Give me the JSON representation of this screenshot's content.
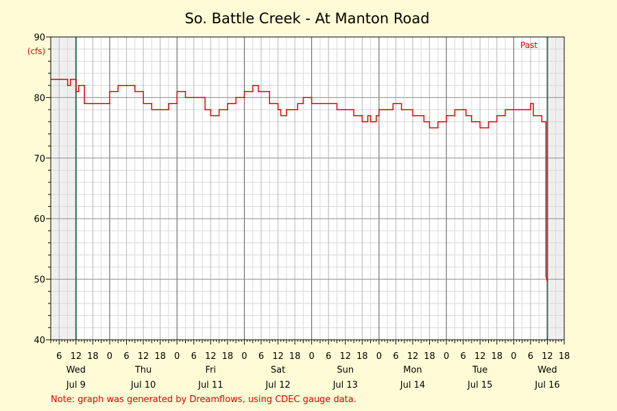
{
  "chart_data": {
    "type": "line",
    "title": "So. Battle Creek - At Manton Road",
    "ylabel": "(cfs)",
    "ylim": [
      40,
      90
    ],
    "yticks": [
      40,
      50,
      60,
      70,
      80,
      90
    ],
    "grid": true,
    "x_unit": "hours since Jul 9 00:00",
    "xlim": [
      3,
      186
    ],
    "hour_tick_labels": [
      "6",
      "12",
      "18",
      "0",
      "6",
      "12",
      "18",
      "0",
      "6",
      "12",
      "18",
      "0",
      "6",
      "12",
      "18",
      "0",
      "6",
      "12",
      "18",
      "0",
      "6",
      "12",
      "18",
      "0",
      "6",
      "12",
      "18",
      "0",
      "6",
      "12",
      "18"
    ],
    "day_labels": [
      {
        "day": "Wed",
        "date": "Jul 9"
      },
      {
        "day": "Thu",
        "date": "Jul 10"
      },
      {
        "day": "Fri",
        "date": "Jul 11"
      },
      {
        "day": "Sat",
        "date": "Jul 12"
      },
      {
        "day": "Sun",
        "date": "Jul 13"
      },
      {
        "day": "Mon",
        "date": "Jul 14"
      },
      {
        "day": "Tue",
        "date": "Jul 15"
      },
      {
        "day": "Wed",
        "date": "Jul 16"
      }
    ],
    "shaded_before": 12,
    "shaded_after": 180,
    "annotation": "Past",
    "line_color": "#e00000",
    "series": [
      {
        "x": [
          3,
          9,
          9,
          10,
          10,
          12,
          12,
          13,
          13,
          15,
          15,
          24,
          24,
          27,
          27,
          33,
          33,
          36,
          36,
          39,
          39,
          45,
          45,
          48,
          48,
          51,
          51,
          58,
          58,
          60,
          60,
          63,
          63,
          66,
          66,
          69,
          69,
          72,
          72,
          75,
          75,
          77,
          77,
          81,
          81,
          84,
          84,
          85,
          85,
          87,
          87,
          91,
          91,
          93,
          93,
          96,
          96,
          99,
          99,
          102,
          102,
          105,
          105,
          111,
          111,
          114,
          114,
          116,
          116,
          117,
          117,
          119,
          119,
          120,
          120,
          125,
          125,
          128,
          128,
          132,
          132,
          136,
          136,
          138,
          138,
          141,
          141,
          144,
          144,
          147,
          147,
          149,
          149,
          151,
          151,
          153,
          153,
          156,
          156,
          159,
          159,
          162,
          162,
          165,
          165,
          174,
          174,
          175,
          175,
          178,
          178,
          179.5,
          179.5,
          179.8,
          180
        ],
        "y": [
          83,
          83,
          82,
          82,
          83,
          83,
          81,
          81,
          82,
          82,
          79,
          79,
          81,
          81,
          82,
          82,
          81,
          81,
          79,
          79,
          78,
          78,
          79,
          79,
          81,
          81,
          80,
          80,
          78,
          78,
          77,
          77,
          78,
          78,
          79,
          79,
          80,
          80,
          81,
          81,
          82,
          82,
          81,
          81,
          79,
          79,
          78,
          78,
          77,
          77,
          78,
          78,
          79,
          79,
          80,
          80,
          79,
          79,
          79,
          79,
          79,
          79,
          78,
          78,
          77,
          77,
          76,
          76,
          77,
          77,
          76,
          76,
          77,
          77,
          78,
          78,
          79,
          79,
          78,
          78,
          77,
          77,
          76,
          76,
          75,
          75,
          76,
          76,
          77,
          77,
          78,
          78,
          78,
          78,
          77,
          77,
          76,
          76,
          75,
          75,
          76,
          76,
          77,
          77,
          78,
          78,
          79,
          79,
          77,
          77,
          76,
          76,
          50.5,
          50,
          49.5
        ]
      }
    ]
  },
  "note": "Note: graph was generated by Dreamflows, using CDEC gauge data."
}
